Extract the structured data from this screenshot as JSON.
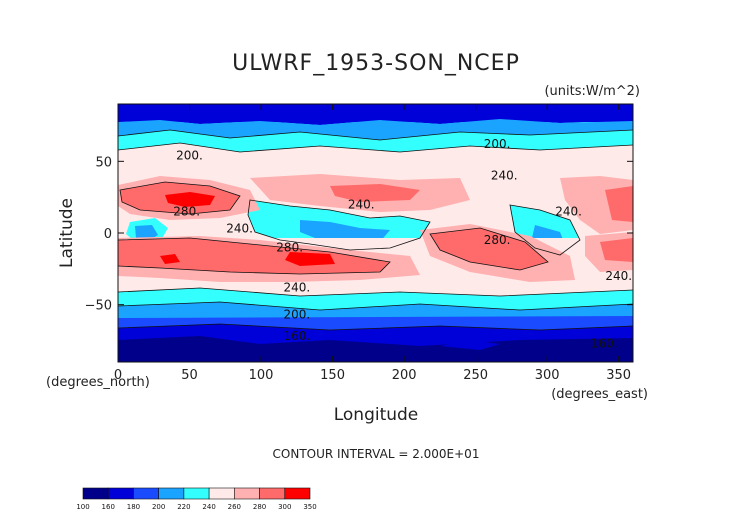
{
  "chart_data": {
    "type": "contour",
    "title": "ULWRF_1953-SON_NCEP",
    "units": "(units:W/m^2)",
    "xlabel": "Longitude",
    "ylabel": "Latitude",
    "xunits": "(degrees_east)",
    "yunits": "(degrees_north)",
    "xlim": [
      0,
      360
    ],
    "ylim": [
      -90,
      90
    ],
    "xticks": [
      0,
      50,
      100,
      150,
      200,
      250,
      300,
      350
    ],
    "yticks": [
      -50,
      0,
      50
    ],
    "contour_interval_text": "CONTOUR INTERVAL = 2.000E+01",
    "levels": [
      100,
      160,
      180,
      200,
      220,
      240,
      260,
      280,
      300,
      350
    ],
    "level_colors": [
      "#00008b",
      "#0000d8",
      "#1a4bff",
      "#1aa3ff",
      "#33ffff",
      "#ffeaea",
      "#ffb0b0",
      "#ff6a6a",
      "#ff0000"
    ],
    "contour_labels": [
      {
        "text": "200.",
        "lon": 50,
        "lat": 54
      },
      {
        "text": "200.",
        "lon": 265,
        "lat": 62
      },
      {
        "text": "240.",
        "lon": 270,
        "lat": 40
      },
      {
        "text": "280.",
        "lon": 48,
        "lat": 15
      },
      {
        "text": "240.",
        "lon": 85,
        "lat": 3
      },
      {
        "text": "240.",
        "lon": 170,
        "lat": 20
      },
      {
        "text": "280.",
        "lon": 120,
        "lat": -10
      },
      {
        "text": "280.",
        "lon": 265,
        "lat": -5
      },
      {
        "text": "240.",
        "lon": 315,
        "lat": 15
      },
      {
        "text": "240.",
        "lon": 350,
        "lat": -30
      },
      {
        "text": "240.",
        "lon": 125,
        "lat": -38
      },
      {
        "text": "200.",
        "lon": 125,
        "lat": -57
      },
      {
        "text": "160.",
        "lon": 125,
        "lat": -72
      },
      {
        "text": "160.",
        "lon": 340,
        "lat": -77
      }
    ]
  }
}
